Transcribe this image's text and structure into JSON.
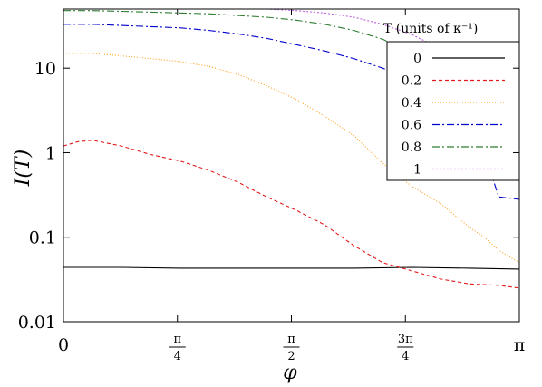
{
  "chart_data": {
    "type": "line",
    "title": "",
    "xlabel": "φ",
    "ylabel": "I(T)",
    "xlim": [
      0,
      3.14159
    ],
    "ylim": [
      0.01,
      50
    ],
    "yscale": "log",
    "grid": false,
    "legend_title": "T (units of κ⁻¹)",
    "legend_placement": "top-right",
    "x_ticks": [
      {
        "value": 0,
        "label": "0"
      },
      {
        "value": 0.7854,
        "label": "π/4"
      },
      {
        "value": 1.5708,
        "label": "π/2"
      },
      {
        "value": 2.3562,
        "label": "3π/4"
      },
      {
        "value": 3.14159,
        "label": "π"
      }
    ],
    "y_ticks": [
      {
        "value": 0.01,
        "label": "0.01"
      },
      {
        "value": 0.1,
        "label": "0.1"
      },
      {
        "value": 1,
        "label": "1"
      },
      {
        "value": 10,
        "label": "10"
      }
    ],
    "series": [
      {
        "name": "0",
        "color": "#000000",
        "dash": "",
        "x": [
          0,
          0.4,
          0.8,
          1.2,
          1.6,
          2.0,
          2.4,
          2.8,
          3.14159
        ],
        "y": [
          0.044,
          0.044,
          0.043,
          0.043,
          0.043,
          0.043,
          0.044,
          0.043,
          0.042
        ]
      },
      {
        "name": "0.2",
        "color": "#e41a1c",
        "dash": "4,3",
        "x": [
          0,
          0.1,
          0.2,
          0.4,
          0.6,
          0.8,
          1.0,
          1.2,
          1.4,
          1.6,
          1.8,
          2.0,
          2.2,
          2.4,
          2.6,
          2.8,
          3.0,
          3.14159
        ],
        "y": [
          1.2,
          1.35,
          1.4,
          1.2,
          0.95,
          0.8,
          0.62,
          0.45,
          0.3,
          0.21,
          0.14,
          0.08,
          0.05,
          0.04,
          0.032,
          0.028,
          0.027,
          0.025
        ]
      },
      {
        "name": "0.4",
        "color": "#ff9f1c",
        "dash": "1,2",
        "x": [
          0,
          0.2,
          0.4,
          0.6,
          0.8,
          1.0,
          1.2,
          1.4,
          1.6,
          1.8,
          2.0,
          2.2,
          2.4,
          2.6,
          2.8,
          2.9,
          3.0,
          3.14159
        ],
        "y": [
          15,
          15,
          14,
          13,
          12,
          10.5,
          8.5,
          6.2,
          4.3,
          2.7,
          1.6,
          0.75,
          0.4,
          0.25,
          0.13,
          0.1,
          0.07,
          0.05
        ]
      },
      {
        "name": "0.6",
        "color": "#0000cc",
        "dash": "8,3,2,3",
        "x": [
          0,
          0.2,
          0.4,
          0.6,
          0.8,
          1.0,
          1.2,
          1.4,
          1.6,
          1.8,
          2.0,
          2.2,
          2.4,
          2.6,
          2.8,
          2.9,
          3.0,
          3.14159
        ],
        "y": [
          33,
          33,
          32,
          31,
          30,
          28,
          25.5,
          22.5,
          19,
          16,
          13,
          10,
          7,
          4.5,
          2.2,
          1,
          0.3,
          0.28
        ]
      },
      {
        "name": "0.8",
        "color": "#2e7d32",
        "dash": "8,3,2,3",
        "x": [
          0,
          0.2,
          0.4,
          0.6,
          0.8,
          1.0,
          1.2,
          1.4,
          1.6,
          1.8,
          2.0,
          2.2,
          2.4,
          2.6,
          2.8
        ],
        "y": [
          48,
          48,
          47,
          46,
          45,
          44,
          42,
          40,
          37,
          33,
          28,
          22,
          15,
          10,
          6
        ]
      },
      {
        "name": "1",
        "color": "#c060e0",
        "dash": "2,2",
        "x": [
          1.4,
          1.6,
          1.8,
          2.0,
          2.2,
          2.4,
          2.6,
          2.8
        ],
        "y": [
          50,
          48,
          45,
          40,
          33,
          25,
          17,
          11
        ]
      }
    ]
  }
}
